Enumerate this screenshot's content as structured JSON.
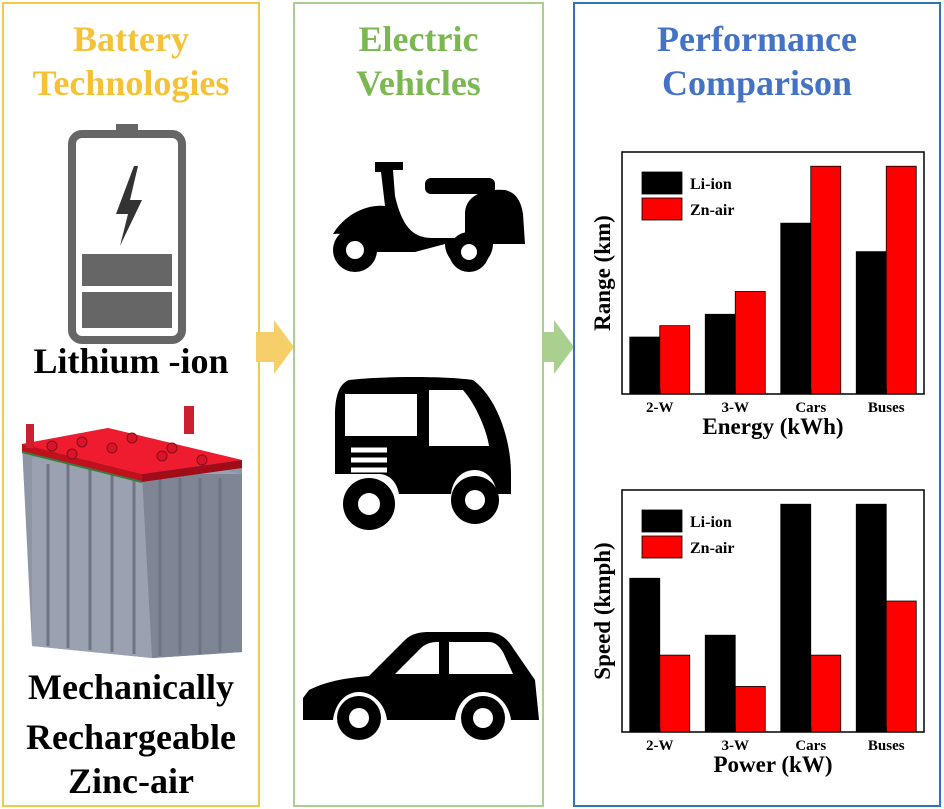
{
  "panels": {
    "battery": {
      "title_line1": "Battery",
      "title_line2": "Technologies",
      "lithium_label": "Lithium -ion",
      "zinc_label_line1": "Mechanically",
      "zinc_label_line2": "Rechargeable",
      "zinc_label_line3": "Zinc-air"
    },
    "ev": {
      "title_line1": "Electric",
      "title_line2": "Vehicles",
      "icons": [
        "scooter-icon",
        "auto-rickshaw-icon",
        "car-icon"
      ]
    },
    "performance": {
      "title_line1": "Performance",
      "title_line2": "Comparison"
    }
  },
  "colors": {
    "battery_border": "#f2c94c",
    "ev_border": "#a9d08e",
    "performance_border": "#2e75b6",
    "li_ion": "#000000",
    "zn_air": "#ff0000"
  },
  "chart_data": [
    {
      "type": "bar",
      "categories": [
        "2-W",
        "3-W",
        "Cars",
        "Buses"
      ],
      "series": [
        {
          "name": "Li-ion",
          "values": [
            2.0,
            2.8,
            6.0,
            5.0
          ]
        },
        {
          "name": "Zn-air",
          "values": [
            2.4,
            3.6,
            8.0,
            8.0
          ]
        }
      ],
      "xlabel": "Energy (kWh)",
      "ylabel": "Range (km)",
      "ylim": [
        0,
        8.5
      ],
      "legend": "top-left",
      "grid": false
    },
    {
      "type": "bar",
      "categories": [
        "2-W",
        "3-W",
        "Cars",
        "Buses"
      ],
      "series": [
        {
          "name": "Li-ion",
          "values": [
            5.4,
            3.4,
            8.0,
            8.0
          ]
        },
        {
          "name": "Zn-air",
          "values": [
            2.7,
            1.6,
            2.7,
            4.6
          ]
        }
      ],
      "xlabel": "Power (kW)",
      "ylabel": "Speed (kmph)",
      "ylim": [
        0,
        8.5
      ],
      "legend": "top-left",
      "grid": false
    }
  ]
}
